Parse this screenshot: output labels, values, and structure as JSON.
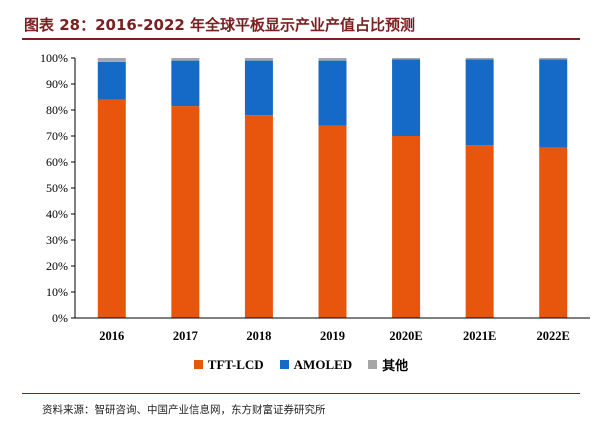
{
  "header": {
    "title": "图表 28：2016-2022 年全球平板显示产业产值占比预测"
  },
  "footer": {
    "source": "资料来源：智研咨询、中国产业信息网，东方财富证券研究所"
  },
  "colors": {
    "TFT-LCD": "#e8560e",
    "AMOLED": "#1569c7",
    "其他": "#a6a6a6",
    "title": "#7a1f1f"
  },
  "chart_data": {
    "type": "bar",
    "stacked": true,
    "categories": [
      "2016",
      "2017",
      "2018",
      "2019",
      "2020E",
      "2021E",
      "2022E"
    ],
    "series": [
      {
        "name": "TFT-LCD",
        "values": [
          84,
          81.5,
          78,
          74,
          70,
          66.5,
          65.5
        ]
      },
      {
        "name": "AMOLED",
        "values": [
          14.5,
          17.5,
          21,
          25,
          29.5,
          33,
          34
        ]
      },
      {
        "name": "其他",
        "values": [
          1.5,
          1,
          1,
          1,
          0.5,
          0.5,
          0.5
        ]
      }
    ],
    "yticks": [
      "0%",
      "10%",
      "20%",
      "30%",
      "40%",
      "50%",
      "60%",
      "70%",
      "80%",
      "90%",
      "100%"
    ],
    "ylim": [
      0,
      100
    ],
    "legend": "bottom",
    "grid": false
  }
}
